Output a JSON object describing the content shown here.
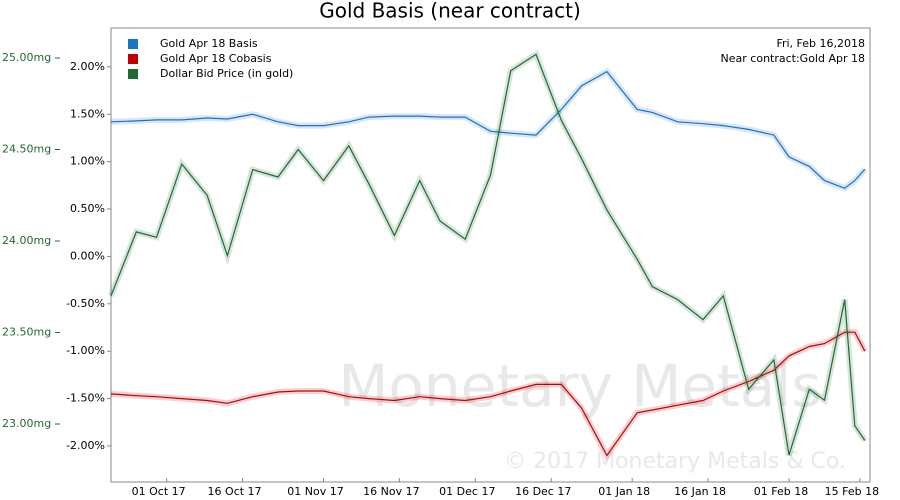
{
  "chart_data": {
    "type": "line",
    "title": "Gold Basis (near contract)",
    "annotations": [
      "Fri, Feb 16,2018",
      "Near contract:Gold Apr 18"
    ],
    "watermark": [
      "Monetary Metals",
      "© 2017 Monetary Metals & Co."
    ],
    "grid": false,
    "legend": "upper left",
    "x": [
      "2017-09-20",
      "2017-09-25",
      "2017-09-29",
      "2017-10-04",
      "2017-10-09",
      "2017-10-13",
      "2017-10-18",
      "2017-10-23",
      "2017-10-27",
      "2017-11-01",
      "2017-11-06",
      "2017-11-10",
      "2017-11-15",
      "2017-11-20",
      "2017-11-24",
      "2017-11-29",
      "2017-12-04",
      "2017-12-08",
      "2017-12-13",
      "2017-12-18",
      "2017-12-22",
      "2017-12-27",
      "2018-01-02",
      "2018-01-05",
      "2018-01-10",
      "2018-01-15",
      "2018-01-19",
      "2018-01-24",
      "2018-01-29",
      "2018-02-01",
      "2018-02-05",
      "2018-02-08",
      "2018-02-12",
      "2018-02-14",
      "2018-02-16"
    ],
    "xlim": [
      "2017-09-20",
      "2018-02-17"
    ],
    "xticks": [
      {
        "value": "2017-10-01",
        "label": "01 Oct 17"
      },
      {
        "value": "2017-10-16",
        "label": "16 Oct 17"
      },
      {
        "value": "2017-11-01",
        "label": "01 Nov 17"
      },
      {
        "value": "2017-11-16",
        "label": "16 Nov 17"
      },
      {
        "value": "2017-12-01",
        "label": "01 Dec 17"
      },
      {
        "value": "2017-12-16",
        "label": "16 Dec 17"
      },
      {
        "value": "2018-01-01",
        "label": "01 Jan 18"
      },
      {
        "value": "2018-01-16",
        "label": "16 Jan 18"
      },
      {
        "value": "2018-02-01",
        "label": "01 Feb 18"
      },
      {
        "value": "2018-02-15",
        "label": "15 Feb 18"
      }
    ],
    "ylim": [
      -2.38,
      2.41
    ],
    "yticks": [
      {
        "value": 2,
        "label": "2.00%"
      },
      {
        "value": 1.5,
        "label": "1.50%"
      },
      {
        "value": 1,
        "label": "1.00%"
      },
      {
        "value": 0.5,
        "label": "0.50%"
      },
      {
        "value": 0,
        "label": "0.00%"
      },
      {
        "value": -0.5,
        "label": "-0.50%"
      },
      {
        "value": -1,
        "label": "-1.00%"
      },
      {
        "value": -1.5,
        "label": "-1.50%"
      },
      {
        "value": -2,
        "label": "-2.00%"
      }
    ],
    "y2lim": [
      22.683,
      25.164
    ],
    "y2ticks": [
      {
        "value": 25,
        "label": "25.00mg"
      },
      {
        "value": 24.5,
        "label": "24.50mg"
      },
      {
        "value": 24,
        "label": "24.00mg"
      },
      {
        "value": 23.5,
        "label": "23.50mg"
      },
      {
        "value": 23,
        "label": "23.00mg"
      }
    ],
    "series": [
      {
        "name": "Gold Apr 18 Basis",
        "color": "#1a73c8",
        "values": [
          1.42,
          1.43,
          1.44,
          1.44,
          1.46,
          1.45,
          1.5,
          1.42,
          1.38,
          1.38,
          1.42,
          1.47,
          1.48,
          1.48,
          1.47,
          1.47,
          1.32,
          1.3,
          1.28,
          1.55,
          1.8,
          1.95,
          1.55,
          1.52,
          1.42,
          1.4,
          1.38,
          1.34,
          1.28,
          1.05,
          0.95,
          0.8,
          0.72,
          0.8,
          0.92
        ]
      },
      {
        "name": "Gold Apr 18 Cobasis",
        "color": "#c00000",
        "values": [
          -1.45,
          -1.47,
          -1.48,
          -1.5,
          -1.52,
          -1.55,
          -1.48,
          -1.43,
          -1.42,
          -1.42,
          -1.48,
          -1.5,
          -1.52,
          -1.48,
          -1.5,
          -1.52,
          -1.48,
          -1.42,
          -1.35,
          -1.35,
          -1.6,
          -2.1,
          -1.65,
          -1.62,
          -1.57,
          -1.52,
          -1.42,
          -1.32,
          -1.2,
          -1.05,
          -0.95,
          -0.92,
          -0.8,
          -0.8,
          -1.0
        ]
      },
      {
        "name": "Dollar Bid Price (in gold)",
        "color": "#1e6b32",
        "axis": "y2",
        "values": [
          23.7,
          24.05,
          24.02,
          24.42,
          24.25,
          23.92,
          24.39,
          24.35,
          24.5,
          24.33,
          24.52,
          24.31,
          24.03,
          24.33,
          24.11,
          24.01,
          24.36,
          24.93,
          25.02,
          24.66,
          24.45,
          24.17,
          23.9,
          23.75,
          23.68,
          23.57,
          23.7,
          23.19,
          23.35,
          22.83,
          23.19,
          23.13,
          23.68,
          22.99,
          22.91
        ]
      }
    ]
  }
}
